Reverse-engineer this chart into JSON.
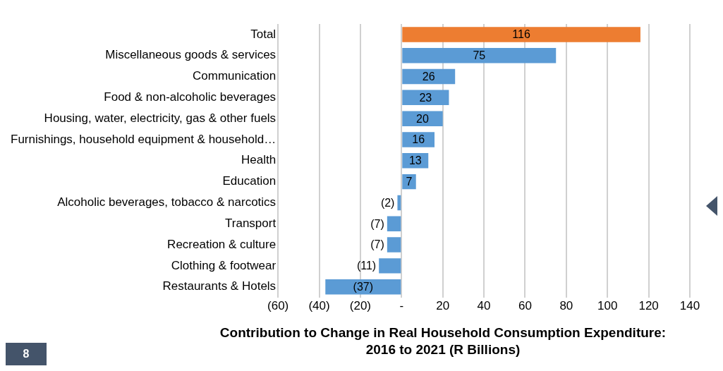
{
  "chart_data": {
    "type": "bar",
    "orientation": "horizontal",
    "title": "Contribution to Change in Real Household Consumption Expenditure:\n2016 to 2021 (R Billions)",
    "categories": [
      "Total",
      "Miscellaneous goods & services",
      "Communication",
      "Food & non-alcoholic beverages",
      "Housing, water, electricity, gas & other fuels",
      "Furnishings, household equipment & household…",
      "Health",
      "Education",
      "Alcoholic beverages, tobacco & narcotics",
      "Transport",
      "Recreation & culture",
      "Clothing & footwear",
      "Restaurants & Hotels"
    ],
    "values": [
      116,
      75,
      26,
      23,
      20,
      16,
      13,
      7,
      -2,
      -7,
      -7,
      -11,
      -37
    ],
    "value_labels": [
      "116",
      "75",
      "26",
      "23",
      "20",
      "16",
      "13",
      "7",
      "(2)",
      "(7)",
      "(7)",
      "(11)",
      "(37)"
    ],
    "colors": [
      "#ed7d31",
      "#5b9bd5",
      "#5b9bd5",
      "#5b9bd5",
      "#5b9bd5",
      "#5b9bd5",
      "#5b9bd5",
      "#5b9bd5",
      "#5b9bd5",
      "#5b9bd5",
      "#5b9bd5",
      "#5b9bd5",
      "#5b9bd5"
    ],
    "xlim": [
      -60,
      140
    ],
    "xticks": [
      {
        "value": -60,
        "label": "(60)"
      },
      {
        "value": -40,
        "label": "(40)"
      },
      {
        "value": -20,
        "label": "(20)"
      },
      {
        "value": 0,
        "label": "-"
      },
      20,
      40,
      60,
      80,
      100,
      120,
      140
    ],
    "grid": "x",
    "legend": false,
    "annotations": [
      "8"
    ]
  }
}
